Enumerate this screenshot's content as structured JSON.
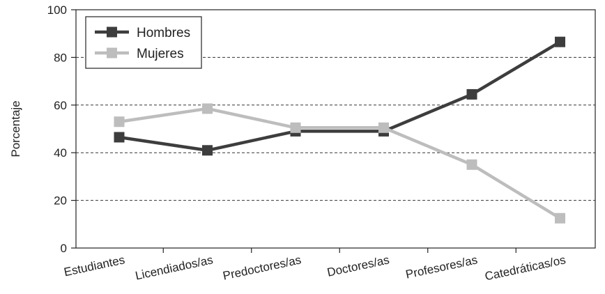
{
  "chart_data": {
    "type": "line",
    "categories": [
      "Estudiantes",
      "Licendiados/as",
      "Predoctores/as",
      "Doctores/as",
      "Profesores/as",
      "Catedráticas/os"
    ],
    "series": [
      {
        "name": "Hombres",
        "values": [
          46.5,
          41,
          49,
          49,
          64.5,
          86.5
        ],
        "color": "#3d3d3d"
      },
      {
        "name": "Mujeres",
        "values": [
          53,
          58.5,
          50.5,
          50.5,
          35,
          12.5
        ],
        "color": "#bdbdbd"
      }
    ],
    "title": "",
    "xlabel": "",
    "ylabel": "Porcentaje",
    "ylim": [
      0,
      100
    ],
    "yticks": [
      0,
      20,
      40,
      60,
      80,
      100
    ],
    "grid": "dashed horizontal at 20, 40, 60, 80",
    "legend_position": "top-left"
  }
}
